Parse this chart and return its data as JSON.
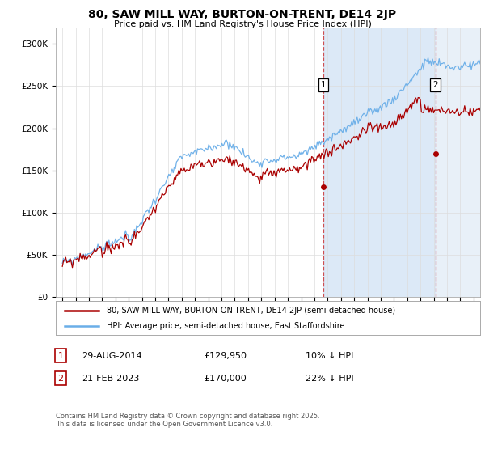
{
  "title": "80, SAW MILL WAY, BURTON-ON-TRENT, DE14 2JP",
  "subtitle": "Price paid vs. HM Land Registry's House Price Index (HPI)",
  "hpi_label": "HPI: Average price, semi-detached house, East Staffordshire",
  "property_label": "80, SAW MILL WAY, BURTON-ON-TRENT, DE14 2JP (semi-detached house)",
  "hpi_color": "#6aaee8",
  "property_color": "#aa0000",
  "sale1_date": "29-AUG-2014",
  "sale1_price": "£129,950",
  "sale1_pct": "10% ↓ HPI",
  "sale2_date": "21-FEB-2023",
  "sale2_price": "£170,000",
  "sale2_pct": "22% ↓ HPI",
  "sale1_year": 2014.66,
  "sale1_value": 129950,
  "sale2_year": 2023.13,
  "sale2_value": 170000,
  "vline1_year": 2014.66,
  "vline2_year": 2023.13,
  "ylim": [
    0,
    320000
  ],
  "xlim_start": 1994.5,
  "xlim_end": 2026.5,
  "footer": "Contains HM Land Registry data © Crown copyright and database right 2025.\nThis data is licensed under the Open Government Licence v3.0.",
  "background_color": "#ffffff",
  "shade1_color": "#dce9f7",
  "shade2_color": "#e8f0f8",
  "grid_color": "#dddddd",
  "annotation_box_color": "#000000"
}
